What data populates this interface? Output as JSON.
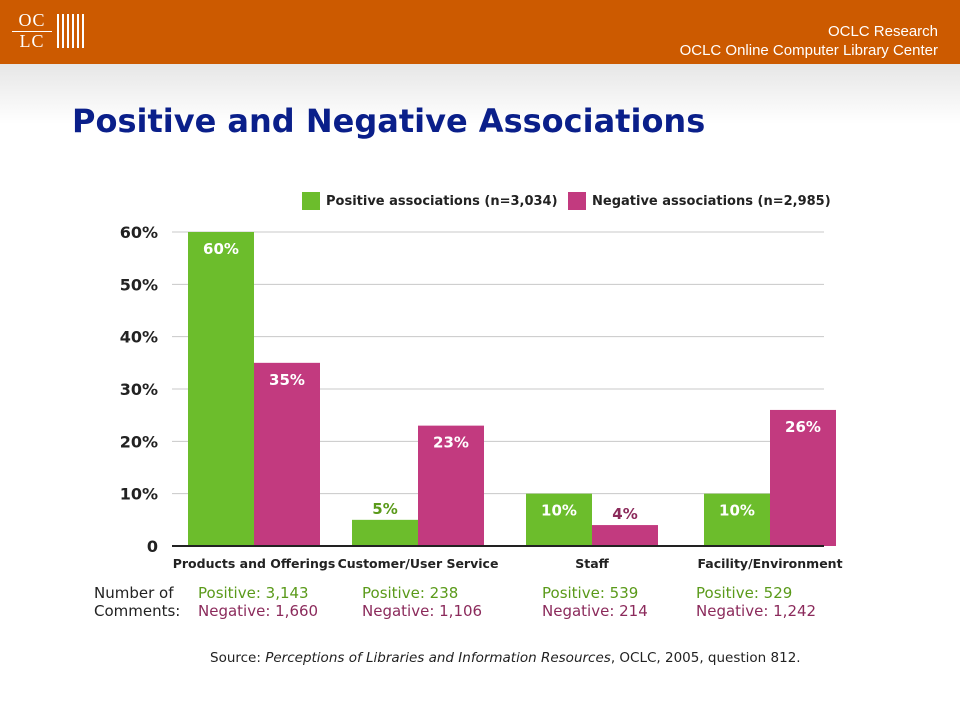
{
  "header": {
    "logo_line1": "OC",
    "logo_line2": "LC",
    "org_line1": "OCLC Research",
    "org_line2": "OCLC Online Computer Library Center"
  },
  "page": {
    "title": "Positive and Negative Associations"
  },
  "colors": {
    "positive": "#6cbd2c",
    "negative": "#c23a7f",
    "header": "#cc5a00",
    "title": "#0a1f8a"
  },
  "chart_data": {
    "type": "bar",
    "title": "",
    "categories": [
      "Products and Offerings",
      "Customer/User Service",
      "Staff",
      "Facility/Environment"
    ],
    "series": [
      {
        "name": "Positive associations (n=3,034)",
        "values": [
          60,
          5,
          10,
          10
        ],
        "labels": [
          "60%",
          "5%",
          "10%",
          "10%"
        ]
      },
      {
        "name": "Negative associations (n=2,985)",
        "values": [
          35,
          23,
          4,
          26
        ],
        "labels": [
          "35%",
          "23%",
          "4%",
          "26%"
        ]
      }
    ],
    "yticks": [
      {
        "value": 0,
        "label": "0"
      },
      {
        "value": 10,
        "label": "10%"
      },
      {
        "value": 20,
        "label": "20%"
      },
      {
        "value": 30,
        "label": "30%"
      },
      {
        "value": 40,
        "label": "40%"
      },
      {
        "value": 50,
        "label": "50%"
      },
      {
        "value": 60,
        "label": "60%"
      }
    ],
    "ylim": [
      0,
      60
    ],
    "grid": true,
    "legend": "top",
    "xlabel": "",
    "ylabel": ""
  },
  "comments": {
    "label_line1": "Number of",
    "label_line2": "Comments:",
    "groups": [
      {
        "positive": "Positive:  3,143",
        "negative": "Negative:  1,660"
      },
      {
        "positive": "Positive:  238",
        "negative": "Negative:  1,106"
      },
      {
        "positive": "Positive:  539",
        "negative": "Negative:  214"
      },
      {
        "positive": "Positive:  529",
        "negative": "Negative:  1,242"
      }
    ]
  },
  "source": {
    "prefix": "Source: ",
    "title": "Perceptions of Libraries and Information Resources",
    "suffix": ", OCLC, 2005, question 812."
  }
}
